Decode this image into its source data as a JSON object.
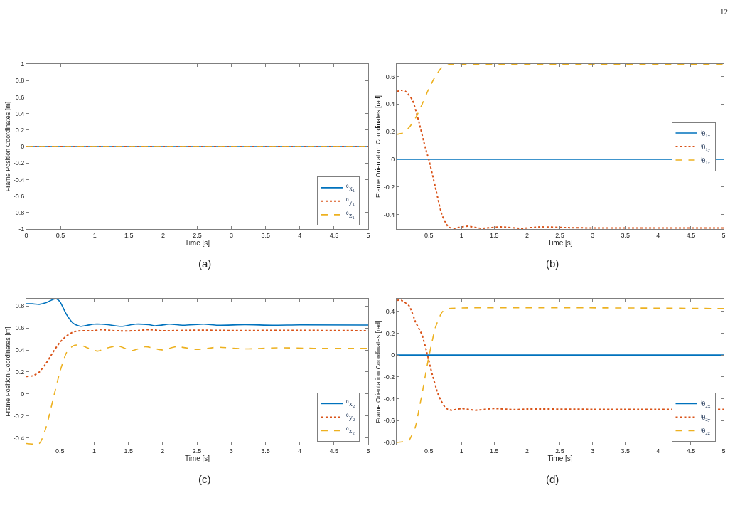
{
  "chart_data": [
    {
      "type": "line",
      "xlabel": "Time [s]",
      "ylabel": "Frame Position Coordinates [m]",
      "annotations": [
        "(a)",
        "12"
      ],
      "xlim": [
        0,
        5
      ],
      "xticks": [
        0,
        0.5,
        1,
        1.5,
        2,
        2.5,
        3,
        3.5,
        4,
        4.5,
        5
      ],
      "ylim": [
        -1,
        1
      ],
      "yticks": [
        -1,
        -0.8,
        -0.6,
        -0.4,
        -0.2,
        0,
        0.2,
        0.4,
        0.6,
        0.8,
        1
      ],
      "legend": "bottom right",
      "marker": "none",
      "series": [
        {
          "name": "⁰x₁",
          "color": "#0072bd",
          "line_style": "solid",
          "x": [
            0,
            5
          ],
          "values": [
            0,
            0
          ]
        },
        {
          "name": "⁰y₁",
          "color": "#d95319",
          "line_style": "dotted",
          "x": [
            0,
            5
          ],
          "values": [
            0,
            0
          ]
        },
        {
          "name": "⁰z₁",
          "color": "#edb120",
          "line_style": "dashed",
          "x": [
            0,
            5
          ],
          "values": [
            0,
            0
          ]
        }
      ]
    },
    {
      "type": "line",
      "xlabel": "Time [s]",
      "ylabel": "Frame Orientation Coordinates [rad]",
      "annotations": [
        "(b)"
      ],
      "xlim": [
        0.01,
        5
      ],
      "xticks": [
        0.5,
        1,
        1.5,
        2,
        2.5,
        3,
        3.5,
        4,
        4.5,
        5
      ],
      "ylim": [
        -0.505,
        0.69
      ],
      "yticks": [
        -0.4,
        -0.2,
        0,
        0.2,
        0.4,
        0.6
      ],
      "legend": "right",
      "marker": "none",
      "series": [
        {
          "name": "ⁱθ$_{1x}$",
          "color": "#0072bd",
          "line_style": "solid",
          "x": [
            0.01,
            5
          ],
          "values": [
            0,
            0
          ]
        },
        {
          "name": "ⁱθ$_{1y}$",
          "color": "#d95319",
          "line_style": "dotted",
          "x": [
            0.01,
            0.08,
            0.15,
            0.25,
            0.35,
            0.45,
            0.5,
            0.6,
            0.7,
            0.8,
            0.9,
            1.0,
            1.1,
            1.3,
            1.6,
            1.9,
            2.2,
            2.6,
            3,
            5
          ],
          "values": [
            0.49,
            0.5,
            0.49,
            0.43,
            0.27,
            0.08,
            0.0,
            -0.2,
            -0.4,
            -0.49,
            -0.5,
            -0.49,
            -0.485,
            -0.5,
            -0.49,
            -0.5,
            -0.49,
            -0.495,
            -0.497,
            -0.497
          ]
        },
        {
          "name": "ⁱθ$_{1z}$",
          "color": "#edb120",
          "line_style": "dashed",
          "x": [
            0.01,
            0.1,
            0.2,
            0.3,
            0.4,
            0.5,
            0.6,
            0.7,
            0.8,
            1,
            5
          ],
          "values": [
            0.18,
            0.19,
            0.23,
            0.3,
            0.4,
            0.51,
            0.6,
            0.665,
            0.685,
            0.688,
            0.688
          ]
        }
      ]
    },
    {
      "type": "line",
      "xlabel": "Time [s]",
      "ylabel": "Frame Position Coordinates [m]",
      "annotations": [
        "(c)"
      ],
      "xlim": [
        0.01,
        5
      ],
      "xticks": [
        0.5,
        1,
        1.5,
        2,
        2.5,
        3,
        3.5,
        4,
        4.5,
        5
      ],
      "ylim": [
        -0.46,
        0.866
      ],
      "yticks": [
        -0.4,
        -0.2,
        0,
        0.2,
        0.4,
        0.6,
        0.8
      ],
      "legend": "bottom right",
      "marker": "none",
      "series": [
        {
          "name": "⁰x₂",
          "color": "#0072bd",
          "line_style": "solid",
          "x": [
            0.01,
            0.1,
            0.2,
            0.3,
            0.4,
            0.45,
            0.5,
            0.6,
            0.7,
            0.8,
            0.9,
            1.0,
            1.1,
            1.2,
            1.4,
            1.6,
            1.8,
            1.9,
            2.1,
            2.3,
            2.6,
            2.8,
            3.2,
            3.6,
            4,
            5
          ],
          "values": [
            0.82,
            0.82,
            0.815,
            0.83,
            0.86,
            0.865,
            0.84,
            0.72,
            0.64,
            0.615,
            0.625,
            0.635,
            0.635,
            0.63,
            0.615,
            0.635,
            0.63,
            0.62,
            0.635,
            0.625,
            0.635,
            0.625,
            0.63,
            0.625,
            0.628,
            0.627
          ]
        },
        {
          "name": "⁰y₂",
          "color": "#d95319",
          "line_style": "dotted",
          "x": [
            0.01,
            0.1,
            0.2,
            0.3,
            0.4,
            0.5,
            0.6,
            0.7,
            0.8,
            1.0,
            1.1,
            1.3,
            1.6,
            1.8,
            2.0,
            2.5,
            3,
            4,
            5
          ],
          "values": [
            0.16,
            0.165,
            0.2,
            0.28,
            0.38,
            0.47,
            0.53,
            0.565,
            0.575,
            0.575,
            0.585,
            0.575,
            0.575,
            0.585,
            0.575,
            0.58,
            0.577,
            0.578,
            0.575
          ]
        },
        {
          "name": "⁰z₂",
          "color": "#edb120",
          "line_style": "dashed",
          "x": [
            0.01,
            0.2,
            0.3,
            0.4,
            0.5,
            0.6,
            0.7,
            0.8,
            0.9,
            1.05,
            1.2,
            1.35,
            1.55,
            1.75,
            2.0,
            2.2,
            2.5,
            2.8,
            3.2,
            3.7,
            4.2,
            5
          ],
          "values": [
            -0.45,
            -0.45,
            -0.3,
            -0.05,
            0.2,
            0.38,
            0.44,
            0.445,
            0.42,
            0.39,
            0.42,
            0.435,
            0.395,
            0.43,
            0.4,
            0.43,
            0.405,
            0.425,
            0.41,
            0.42,
            0.415,
            0.415
          ]
        }
      ]
    },
    {
      "type": "line",
      "xlabel": "Time [s]",
      "ylabel": "Frame Orientation Coordinates [rad]",
      "annotations": [
        "(d)"
      ],
      "xlim": [
        0.01,
        5
      ],
      "xticks": [
        0.5,
        1,
        1.5,
        2,
        2.5,
        3,
        3.5,
        4,
        4.5,
        5
      ],
      "ylim": [
        -0.82,
        0.515
      ],
      "yticks": [
        -0.8,
        -0.6,
        -0.4,
        -0.2,
        0,
        0.2,
        0.4
      ],
      "legend": "bottom right",
      "marker": "none",
      "series": [
        {
          "name": "ⁱθ$_{2x}$",
          "color": "#0072bd",
          "line_style": "solid",
          "x": [
            0.01,
            5
          ],
          "values": [
            0,
            0
          ]
        },
        {
          "name": "ⁱθ$_{2y}$",
          "color": "#d95319",
          "line_style": "dotted",
          "x": [
            0.01,
            0.08,
            0.2,
            0.3,
            0.4,
            0.48,
            0.55,
            0.65,
            0.75,
            0.8,
            0.85,
            1.0,
            1.2,
            1.5,
            1.8,
            2,
            3,
            5
          ],
          "values": [
            0.5,
            0.5,
            0.45,
            0.3,
            0.18,
            0,
            -0.17,
            -0.37,
            -0.48,
            -0.5,
            -0.505,
            -0.49,
            -0.505,
            -0.49,
            -0.5,
            -0.495,
            -0.497,
            -0.497
          ]
        },
        {
          "name": "ⁱθ$_{2z}$",
          "color": "#edb120",
          "line_style": "dashed",
          "x": [
            0.01,
            0.15,
            0.2,
            0.3,
            0.35,
            0.4,
            0.45,
            0.5,
            0.55,
            0.6,
            0.7,
            0.75,
            0.8,
            5
          ],
          "values": [
            -0.8,
            -0.79,
            -0.78,
            -0.65,
            -0.5,
            -0.35,
            -0.18,
            -0.02,
            0.12,
            0.25,
            0.39,
            0.415,
            0.425,
            0.425
          ]
        }
      ]
    }
  ]
}
